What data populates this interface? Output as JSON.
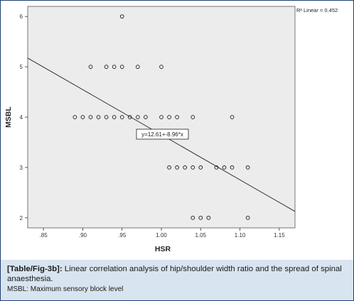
{
  "chart_data": {
    "type": "scatter",
    "xlabel": "HSR",
    "ylabel": "MSBL",
    "xlim": [
      0.83,
      1.17
    ],
    "ylim": [
      1.8,
      6.2
    ],
    "xticks": [
      0.85,
      0.9,
      0.95,
      1.0,
      1.05,
      1.1,
      1.15
    ],
    "xtick_labels": [
      ".85",
      ".90",
      ".95",
      "1.00",
      "1.05",
      "1.10",
      "1.15"
    ],
    "yticks": [
      2,
      3,
      4,
      5,
      6
    ],
    "ytick_labels": [
      "2",
      "3",
      "4",
      "5",
      "6"
    ],
    "grid": false,
    "r2_label": "R² Linear = 0.452",
    "equation_label": "y=12.61+-8.96*x",
    "fit_line": {
      "intercept": 12.61,
      "slope": -8.96
    },
    "points": [
      {
        "x": 0.95,
        "y": 6
      },
      {
        "x": 0.91,
        "y": 5
      },
      {
        "x": 0.93,
        "y": 5
      },
      {
        "x": 0.94,
        "y": 5
      },
      {
        "x": 0.95,
        "y": 5
      },
      {
        "x": 0.97,
        "y": 5
      },
      {
        "x": 1.0,
        "y": 5
      },
      {
        "x": 0.89,
        "y": 4
      },
      {
        "x": 0.9,
        "y": 4
      },
      {
        "x": 0.91,
        "y": 4
      },
      {
        "x": 0.92,
        "y": 4
      },
      {
        "x": 0.93,
        "y": 4
      },
      {
        "x": 0.94,
        "y": 4
      },
      {
        "x": 0.95,
        "y": 4
      },
      {
        "x": 0.96,
        "y": 4
      },
      {
        "x": 0.97,
        "y": 4
      },
      {
        "x": 0.98,
        "y": 4
      },
      {
        "x": 1.0,
        "y": 4
      },
      {
        "x": 1.01,
        "y": 4
      },
      {
        "x": 1.02,
        "y": 4
      },
      {
        "x": 1.04,
        "y": 4
      },
      {
        "x": 1.09,
        "y": 4
      },
      {
        "x": 1.01,
        "y": 3
      },
      {
        "x": 1.02,
        "y": 3
      },
      {
        "x": 1.03,
        "y": 3
      },
      {
        "x": 1.04,
        "y": 3
      },
      {
        "x": 1.05,
        "y": 3
      },
      {
        "x": 1.07,
        "y": 3
      },
      {
        "x": 1.08,
        "y": 3
      },
      {
        "x": 1.09,
        "y": 3
      },
      {
        "x": 1.11,
        "y": 3
      },
      {
        "x": 1.04,
        "y": 2
      },
      {
        "x": 1.05,
        "y": 2
      },
      {
        "x": 1.06,
        "y": 2
      },
      {
        "x": 1.11,
        "y": 2
      }
    ],
    "marker_color": "#1a1a1a",
    "plot_background": "#ececec"
  },
  "caption": {
    "fig_ref": "[Table/Fig-3b]:",
    "text": " Linear correlation analysis of hip/shoulder width ratio and the spread of spinal anaesthesia.",
    "note": "MSBL: Maximum sensory block level"
  },
  "colors": {
    "caption_background": "#d8e4ef",
    "frame_border": "#1f3f73"
  }
}
